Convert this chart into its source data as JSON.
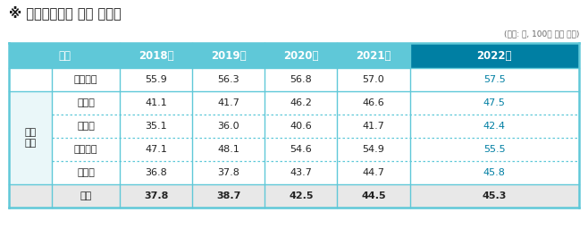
{
  "title": "※ 디지털정보화 활용 원점수",
  "subtitle": "(단위: 점, 100점 만점 기준)",
  "header": [
    "구분",
    "2018년",
    "2019년",
    "2020년",
    "2021년",
    "2022년"
  ],
  "rows": [
    {
      "label": "일반국민",
      "group": null,
      "values": [
        "55.9",
        "56.3",
        "56.8",
        "57.0",
        "57.5"
      ],
      "avg_row": false
    },
    {
      "label": "장애인",
      "group": "취약\n계층",
      "values": [
        "41.1",
        "41.7",
        "46.2",
        "46.6",
        "47.5"
      ],
      "avg_row": false
    },
    {
      "label": "고령층",
      "group": "",
      "values": [
        "35.1",
        "36.0",
        "40.6",
        "41.7",
        "42.4"
      ],
      "avg_row": false
    },
    {
      "label": "저소득층",
      "group": "",
      "values": [
        "47.1",
        "48.1",
        "54.6",
        "54.9",
        "55.5"
      ],
      "avg_row": false
    },
    {
      "label": "농어민",
      "group": "",
      "values": [
        "36.8",
        "37.8",
        "43.7",
        "44.7",
        "45.8"
      ],
      "avg_row": false
    },
    {
      "label": "평균",
      "group": "",
      "values": [
        "37.8",
        "38.7",
        "42.5",
        "44.5",
        "45.3"
      ],
      "avg_row": true
    }
  ],
  "header_bg": "#5fc8d8",
  "header_last_bg": "#007fa3",
  "header_text_color": "#ffffff",
  "last_col_text_color": "#007fa3",
  "border_color": "#5fc8d8",
  "dotted_color": "#5fc8d8",
  "group_col_bg": "#eaf7f9",
  "avg_row_bg": "#e8e8e8",
  "white_bg": "#ffffff",
  "title_color": "#1a1a1a",
  "subtitle_color": "#666666",
  "text_color": "#222222",
  "bold_border_color": "#5fc8d8"
}
